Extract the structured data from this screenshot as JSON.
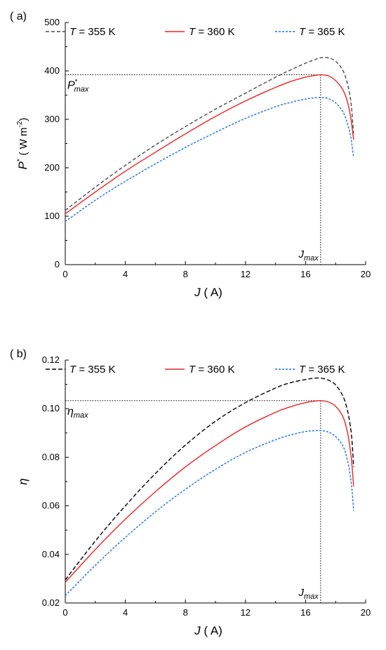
{
  "chart_data": [
    {
      "type": "line",
      "panel_label": "( a)",
      "xlabel": "J",
      "xlabel_unit": "( A)",
      "ylabel": "P",
      "ylabel_sup": "*",
      "ylabel_unit": "( W m",
      "ylabel_unit_sup": "-2",
      "ylabel_unit_end": ")",
      "xlim": [
        0,
        20
      ],
      "ylim": [
        0,
        500
      ],
      "xticks": [
        0,
        4,
        8,
        12,
        16,
        20
      ],
      "yticks": [
        0,
        100,
        200,
        300,
        400,
        500
      ],
      "grid": false,
      "legend_position": "top",
      "annotations": {
        "ymax_label_main": "P",
        "ymax_label_sup": "*",
        "ymax_label_sub": "max",
        "ymax_value": 392,
        "xmax_label_main": "J",
        "xmax_label_sub": "max",
        "xmax_value": 17.0
      },
      "series": [
        {
          "name": "T = 355 K",
          "legend_italic": "T",
          "legend_rest": " = 355 K",
          "color": "#4a4a4a",
          "dash": "5,3",
          "x": [
            0,
            2,
            4,
            6,
            8,
            10,
            12,
            14,
            15,
            16,
            16.5,
            17,
            17.5,
            18,
            18.5,
            18.8,
            19.0,
            19.1,
            19.2
          ],
          "y": [
            112,
            160,
            205,
            247,
            285,
            321,
            354,
            387,
            402,
            416,
            422,
            427,
            427,
            420,
            400,
            372,
            340,
            310,
            265
          ]
        },
        {
          "name": "T = 360 K",
          "legend_italic": "T",
          "legend_rest": " = 360 K",
          "color": "#e8262a",
          "dash": "",
          "x": [
            0,
            2,
            4,
            6,
            8,
            10,
            12,
            14,
            15,
            16,
            16.5,
            17,
            17.5,
            18,
            18.5,
            18.8,
            19.0,
            19.1,
            19.2
          ],
          "y": [
            105,
            150,
            193,
            232,
            270,
            306,
            338,
            366,
            378,
            387,
            390,
            392,
            390,
            380,
            360,
            335,
            305,
            283,
            258
          ]
        },
        {
          "name": "T = 365 K",
          "legend_italic": "T",
          "legend_rest": " = 365 K",
          "color": "#1f6fdc",
          "dash": "3,2",
          "x": [
            0,
            2,
            4,
            6,
            8,
            10,
            12,
            14,
            15,
            16,
            16.5,
            17,
            17.5,
            18,
            18.5,
            18.8,
            19.0,
            19.1,
            19.2
          ],
          "y": [
            89,
            133,
            172,
            208,
            242,
            273,
            302,
            326,
            335,
            342,
            344,
            345,
            343,
            334,
            315,
            290,
            265,
            245,
            222
          ]
        }
      ]
    },
    {
      "type": "line",
      "panel_label": "( b)",
      "xlabel": "J",
      "xlabel_unit": "( A)",
      "ylabel": "η",
      "xlim": [
        0,
        20
      ],
      "ylim": [
        0.02,
        0.12
      ],
      "xticks": [
        0,
        4,
        8,
        12,
        16,
        20
      ],
      "yticks": [
        0.02,
        0.04,
        0.06,
        0.08,
        0.1,
        0.12
      ],
      "ytick_labels": [
        "0.02",
        "0.04",
        "0.06",
        "0.08",
        "0.10",
        "0.12"
      ],
      "grid": false,
      "legend_position": "top",
      "annotations": {
        "ymax_label_main": "η",
        "ymax_label_sub": "max",
        "ymax_value": 0.1033,
        "xmax_label_main": "J",
        "xmax_label_sub": "max",
        "xmax_value": 17.0
      },
      "series": [
        {
          "name": "T = 355 K",
          "legend_italic": "T",
          "legend_rest": " = 355 K",
          "color": "#000000",
          "dash": "6,3",
          "x": [
            0,
            2,
            4,
            6,
            8,
            10,
            12,
            14,
            15,
            16,
            16.5,
            17,
            17.5,
            18,
            18.5,
            18.8,
            19.0,
            19.1,
            19.2
          ],
          "y": [
            0.0295,
            0.0455,
            0.06,
            0.0733,
            0.085,
            0.0948,
            0.1025,
            0.1085,
            0.1107,
            0.112,
            0.1125,
            0.1126,
            0.1118,
            0.1098,
            0.105,
            0.099,
            0.092,
            0.086,
            0.076
          ]
        },
        {
          "name": "T = 360 K",
          "legend_italic": "T",
          "legend_rest": " = 360 K",
          "color": "#e8262a",
          "dash": "",
          "x": [
            0,
            2,
            4,
            6,
            8,
            10,
            12,
            14,
            15,
            16,
            16.5,
            17,
            17.5,
            18,
            18.5,
            18.8,
            19.0,
            19.1,
            19.2
          ],
          "y": [
            0.0285,
            0.042,
            0.0545,
            0.0658,
            0.076,
            0.0848,
            0.0925,
            0.0985,
            0.1008,
            0.1025,
            0.103,
            0.1033,
            0.1028,
            0.101,
            0.0965,
            0.09,
            0.082,
            0.076,
            0.068
          ]
        },
        {
          "name": "T = 365 K",
          "legend_italic": "T",
          "legend_rest": " = 365 K",
          "color": "#1f6fdc",
          "dash": "3,2",
          "x": [
            0,
            2,
            4,
            6,
            8,
            10,
            12,
            14,
            15,
            16,
            16.5,
            17,
            17.5,
            18,
            18.5,
            18.8,
            19.0,
            19.1,
            19.2
          ],
          "y": [
            0.023,
            0.0355,
            0.047,
            0.0575,
            0.0668,
            0.075,
            0.082,
            0.0872,
            0.0892,
            0.0906,
            0.0909,
            0.091,
            0.0904,
            0.0885,
            0.0845,
            0.0785,
            0.0715,
            0.066,
            0.058
          ]
        }
      ]
    }
  ]
}
